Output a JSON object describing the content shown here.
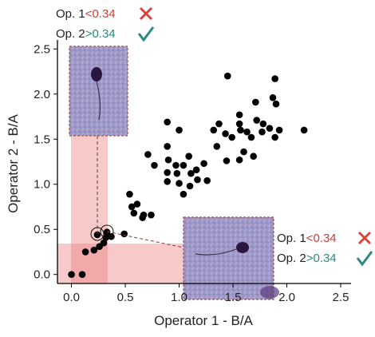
{
  "chart_data": {
    "type": "scatter",
    "x_label": "Operator 1 - B/A",
    "y_label": "Operator 2 - B/A",
    "xlim": [
      -0.13,
      2.6
    ],
    "ylim": [
      -0.1,
      2.6
    ],
    "xticks": [
      {
        "value": 0,
        "label": "0.0"
      },
      0.5,
      {
        "value": 1,
        "label": "1.0"
      },
      1.5,
      {
        "value": 2,
        "label": "2.0"
      },
      2.5
    ],
    "yticks": [
      {
        "value": 0,
        "label": "0.0"
      },
      0.5,
      {
        "value": 1,
        "label": "1.0"
      },
      1.5,
      {
        "value": 2,
        "label": "2.0"
      },
      2.5
    ],
    "color": "#000000",
    "x": [
      0.0,
      0.1,
      0.13,
      0.21,
      0.26,
      0.3,
      0.32,
      0.24,
      0.33,
      0.37,
      0.49,
      0.54,
      0.56,
      0.61,
      0.67,
      0.66,
      0.74,
      0.58,
      0.71,
      0.77,
      0.89,
      0.9,
      0.89,
      0.89,
      0.97,
      0.98,
      1.0,
      1.04,
      1.09,
      1.11,
      1.16,
      1.17,
      1.1,
      1.04,
      0.89,
      1.0,
      1.26,
      1.23,
      1.35,
      1.32,
      1.37,
      1.43,
      1.44,
      1.49,
      1.45,
      1.56,
      1.56,
      1.57,
      1.6,
      1.56,
      1.63,
      1.67,
      1.69,
      1.71,
      1.72,
      1.78,
      1.77,
      1.84,
      1.87,
      1.89,
      1.9,
      1.89,
      1.93,
      2.16
    ],
    "values": [
      0.0,
      0.0,
      0.25,
      0.27,
      0.31,
      0.35,
      0.41,
      0.44,
      0.47,
      0.42,
      0.45,
      0.89,
      0.75,
      0.78,
      0.66,
      0.63,
      0.66,
      0.68,
      1.33,
      1.21,
      1.42,
      1.27,
      1.13,
      1.03,
      1.21,
      1.12,
      1.01,
      1.21,
      1.31,
      1.12,
      1.16,
      1.05,
      0.98,
      0.89,
      1.69,
      1.6,
      1.04,
      1.23,
      1.42,
      1.6,
      1.67,
      1.56,
      1.26,
      1.52,
      2.2,
      1.77,
      1.67,
      1.6,
      1.36,
      1.27,
      1.58,
      1.52,
      1.31,
      1.91,
      1.71,
      1.67,
      1.58,
      1.62,
      1.96,
      2.17,
      1.89,
      1.52,
      1.6,
      1.6
    ],
    "annotations": [
      {
        "label": "Op. 1",
        "condition": "<0.34"
      },
      {
        "label": "Op. 2",
        "condition": ">0.34"
      },
      {
        "label": "Op. 1",
        "condition": "<0.34"
      },
      {
        "label": "Op. 2",
        "condition": ">0.34"
      }
    ]
  }
}
